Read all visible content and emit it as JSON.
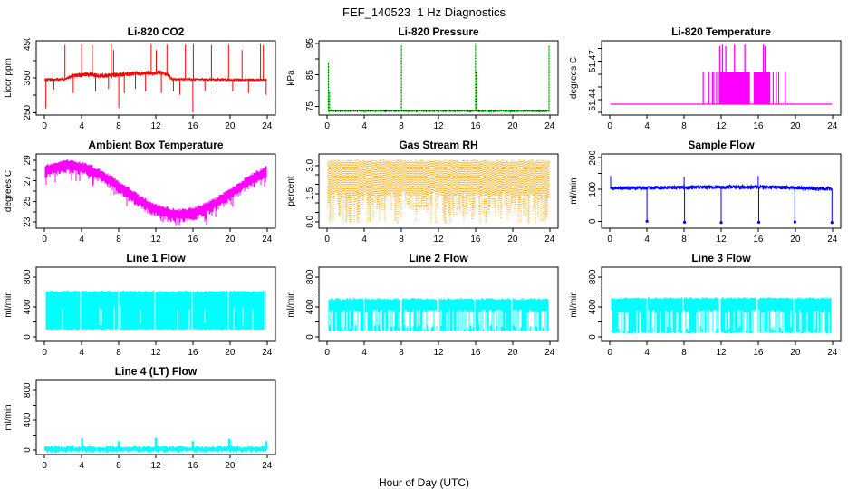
{
  "figure": {
    "title": "FEF_140523  1 Hz Diagnostics",
    "xlabel": "Hour of Day (UTC)",
    "background": "#FFFFFF",
    "axis_color": "#000000"
  },
  "chart_data": [
    {
      "type": "line",
      "title": "Li-820 CO2",
      "ylabel": "Licor ppm",
      "color": "#FF0000",
      "xlim": [
        -0.9,
        24.9
      ],
      "ylim": [
        243,
        457
      ],
      "xticks": [
        0,
        4,
        8,
        12,
        16,
        20,
        24
      ],
      "ytick_vals": [
        250,
        300,
        350,
        400,
        450
      ],
      "ytick_labels": [
        "250",
        "",
        "350",
        "",
        "450"
      ],
      "trace": {
        "kind": "noisy_line",
        "t0": 0.05,
        "t1": 23.95,
        "levels": [
          [
            0,
            345
          ],
          [
            2.2,
            346
          ],
          [
            3,
            357
          ],
          [
            5,
            360
          ],
          [
            6,
            356
          ],
          [
            8,
            359
          ],
          [
            10,
            364
          ],
          [
            12.5,
            365
          ],
          [
            13.2,
            362
          ],
          [
            13.6,
            350
          ],
          [
            14,
            346
          ],
          [
            24,
            344
          ]
        ],
        "noise": [
          [
            0,
            3
          ],
          [
            2.4,
            3
          ],
          [
            3,
            6
          ],
          [
            13,
            6
          ],
          [
            14,
            2.5
          ],
          [
            24,
            2.5
          ]
        ],
        "spikes": [
          [
            0.15,
            262
          ],
          [
            1.0,
            316
          ],
          [
            2.2,
            445
          ],
          [
            3.1,
            306
          ],
          [
            4.0,
            447
          ],
          [
            5.15,
            445
          ],
          [
            5.5,
            311
          ],
          [
            6.9,
            318
          ],
          [
            7.2,
            446
          ],
          [
            7.45,
            430
          ],
          [
            8.0,
            263
          ],
          [
            8.6,
            306
          ],
          [
            9.8,
            318
          ],
          [
            10.9,
            311
          ],
          [
            11.5,
            447
          ],
          [
            12.05,
            430
          ],
          [
            12.6,
            306
          ],
          [
            13.2,
            446
          ],
          [
            13.9,
            311
          ],
          [
            14.6,
            301
          ],
          [
            15.2,
            446
          ],
          [
            16.0,
            250
          ],
          [
            16.05,
            447
          ],
          [
            17.3,
            312
          ],
          [
            18.0,
            445
          ],
          [
            18.6,
            306
          ],
          [
            19.85,
            446
          ],
          [
            20.3,
            311
          ],
          [
            21.3,
            430
          ],
          [
            22.0,
            306
          ],
          [
            23.3,
            447
          ],
          [
            23.6,
            445
          ],
          [
            23.9,
            301
          ]
        ]
      }
    },
    {
      "type": "line",
      "title": "Li-820 Pressure",
      "ylabel": "kPa",
      "color": "#00FF00",
      "xlim": [
        -0.9,
        24.9
      ],
      "ylim": [
        72.3,
        95.8
      ],
      "xticks": [
        0,
        4,
        8,
        12,
        16,
        20,
        24
      ],
      "ytick_vals": [
        75,
        80,
        85,
        90,
        95
      ],
      "ytick_labels": [
        "75",
        "",
        "85",
        "",
        "95"
      ],
      "trace": {
        "kind": "noisy_line",
        "t0": 0.05,
        "t1": 23.95,
        "dotted_overlay": true,
        "levels": [
          [
            0,
            73.6
          ],
          [
            24,
            73.55
          ]
        ],
        "noise": [
          [
            0,
            0.12
          ],
          [
            24,
            0.12
          ]
        ],
        "spikes": [
          [
            0.12,
            88.6
          ],
          [
            0.25,
            79.5
          ],
          [
            4.0,
            72.9
          ],
          [
            8.0,
            94.4
          ],
          [
            12.0,
            73.0
          ],
          [
            16.0,
            94.7
          ],
          [
            16.1,
            86.0
          ],
          [
            17.5,
            73.0
          ],
          [
            19.8,
            72.8
          ],
          [
            23.92,
            94.2
          ]
        ]
      }
    },
    {
      "type": "line",
      "title": "Li-820 Temperature",
      "ylabel": "degrees C",
      "color": "#FF00FF",
      "xlim": [
        -0.9,
        24.9
      ],
      "ylim": [
        51.428,
        51.486
      ],
      "xticks": [
        0,
        4,
        8,
        12,
        16,
        20,
        24
      ],
      "ytick_vals": [
        51.43,
        51.44,
        51.45,
        51.46,
        51.47,
        51.48
      ],
      "ytick_labels": [
        "",
        "51.44",
        "",
        "",
        "51.47",
        ""
      ],
      "trace": {
        "kind": "step_blocks",
        "t0": 0.05,
        "t1": 23.95,
        "base": 51.4365,
        "block_top": 51.4615,
        "blocks": [
          [
            10.0,
            10.12
          ],
          [
            10.55,
            10.72
          ],
          [
            11.0,
            11.06
          ],
          [
            11.15,
            11.22
          ],
          [
            11.45,
            11.5
          ],
          [
            11.75,
            15.1
          ],
          [
            15.5,
            17.3
          ],
          [
            17.55,
            17.6
          ],
          [
            17.9,
            17.95
          ],
          [
            18.15,
            18.2
          ],
          [
            18.85,
            18.95
          ]
        ],
        "spikes": [
          [
            11.85,
            51.482
          ],
          [
            12.15,
            51.483
          ],
          [
            12.5,
            51.482
          ],
          [
            13.45,
            51.483
          ],
          [
            14.55,
            51.483
          ],
          [
            16.55,
            51.483
          ],
          [
            16.75,
            51.482
          ]
        ]
      }
    },
    {
      "type": "line",
      "title": "Ambient Box Temperature",
      "ylabel": "degrees C",
      "color": "#FF00FF",
      "xlim": [
        -0.9,
        24.9
      ],
      "ylim": [
        22.4,
        29.6
      ],
      "xticks": [
        0,
        4,
        8,
        12,
        16,
        20,
        24
      ],
      "ytick_vals": [
        23,
        24,
        25,
        26,
        27,
        28,
        29
      ],
      "ytick_labels": [
        "23",
        "",
        "25",
        "",
        "27",
        "",
        "29"
      ],
      "trace": {
        "kind": "sine_band",
        "t0": 0.05,
        "t1": 23.95,
        "mean": 26.1,
        "amp": 2.35,
        "phase": 2.6,
        "up": 0.6,
        "dn": 0.8,
        "spike_p": 0.12,
        "spike_amp": 0.9
      }
    },
    {
      "type": "scatter",
      "title": "Gas Stream RH",
      "ylabel": "percent",
      "color": "#FFA500",
      "xlim": [
        -0.9,
        24.9
      ],
      "ylim": [
        -0.35,
        3.62
      ],
      "xticks": [
        0,
        4,
        8,
        12,
        16,
        20,
        24
      ],
      "ytick_vals": [
        0,
        0.5,
        1,
        1.5,
        2,
        2.5,
        3
      ],
      "ytick_labels": [
        "0.0",
        "",
        "",
        "1.5",
        "",
        "",
        "3.0"
      ],
      "trace": {
        "kind": "dot_band",
        "t0": 0.05,
        "t1": 23.95,
        "top": 3.32,
        "mid": 1.45,
        "low_min": -0.08,
        "lower_p": 0.62
      }
    },
    {
      "type": "line",
      "title": "Sample Flow",
      "ylabel": "ml/min",
      "color": "#0000FF",
      "xlim": [
        -0.9,
        24.9
      ],
      "ylim": [
        -22,
        212
      ],
      "xticks": [
        0,
        4,
        8,
        12,
        16,
        20,
        24
      ],
      "ytick_vals": [
        0,
        50,
        100,
        150,
        200
      ],
      "ytick_labels": [
        "0",
        "",
        "100",
        "",
        "200"
      ],
      "trace": {
        "kind": "noisy_line",
        "t0": 0.05,
        "t1": 23.95,
        "dip_dots": true,
        "dot_below": 10,
        "levels": [
          [
            0,
            104
          ],
          [
            6,
            106
          ],
          [
            12,
            108
          ],
          [
            18,
            107
          ],
          [
            24,
            102
          ]
        ],
        "noise": [
          [
            0,
            6
          ],
          [
            24,
            6
          ]
        ],
        "spikes": [
          [
            0.08,
            143
          ],
          [
            4.0,
            0
          ],
          [
            8.0,
            140
          ],
          [
            8.05,
            -3
          ],
          [
            12.0,
            -4
          ],
          [
            16.0,
            143
          ],
          [
            16.06,
            -3
          ],
          [
            19.95,
            -2
          ],
          [
            23.95,
            -4
          ]
        ]
      }
    },
    {
      "type": "line",
      "title": "Line 1 Flow",
      "ylabel": "ml/min",
      "color": "#00FFFF",
      "xlim": [
        -0.9,
        24.9
      ],
      "ylim": [
        -60,
        930
      ],
      "xticks": [
        0,
        4,
        8,
        12,
        16,
        20,
        24
      ],
      "ytick_vals": [
        0,
        200,
        400,
        600,
        800
      ],
      "ytick_labels": [
        "0",
        "",
        "400",
        "",
        "800"
      ],
      "trace": {
        "kind": "band",
        "t0": 0.1,
        "t1": 23.9,
        "min": 100,
        "max": 618,
        "jmin": 14,
        "jmax": 24,
        "holeP": 0.05,
        "topFrac": 0.5,
        "gapw": 0.05,
        "gaps": [
          3.9,
          7.95,
          11.9,
          15.9,
          19.85,
          23.72
        ]
      }
    },
    {
      "type": "line",
      "title": "Line 2 Flow",
      "ylabel": "ml/min",
      "color": "#00FFFF",
      "xlim": [
        -0.9,
        24.9
      ],
      "ylim": [
        -60,
        930
      ],
      "xticks": [
        0,
        4,
        8,
        12,
        16,
        20,
        24
      ],
      "ytick_vals": [
        0,
        200,
        400,
        600,
        800
      ],
      "ytick_labels": [
        "0",
        "",
        "400",
        "",
        "800"
      ],
      "trace": {
        "kind": "band",
        "t0": 0.1,
        "t1": 23.85,
        "min": 85,
        "max": 520,
        "jmin": 20,
        "jmax": 28,
        "holeP": 0.45,
        "topFrac": 0.45,
        "gapw": 0.06,
        "gaps": [
          3.95,
          7.95,
          11.95,
          15.9,
          19.9
        ]
      }
    },
    {
      "type": "line",
      "title": "Line 3 Flow",
      "ylabel": "ml/min",
      "color": "#00FFFF",
      "xlim": [
        -0.9,
        24.9
      ],
      "ylim": [
        -60,
        930
      ],
      "xticks": [
        0,
        4,
        8,
        12,
        16,
        20,
        24
      ],
      "ytick_vals": [
        0,
        200,
        400,
        600,
        800
      ],
      "ytick_labels": [
        "0",
        "",
        "400",
        "",
        "800"
      ],
      "trace": {
        "kind": "band",
        "t0": 0.15,
        "t1": 23.9,
        "min": 58,
        "max": 530,
        "jmin": 26,
        "jmax": 26,
        "holeP": 0.4,
        "topFrac": 0.45,
        "gapw": 0.06,
        "gaps": [
          3.95,
          7.9,
          11.85,
          15.85,
          19.8
        ]
      }
    },
    {
      "type": "line",
      "title": "Line 4 (LT) Flow",
      "ylabel": "ml/min",
      "color": "#00FFFF",
      "xlim": [
        -0.9,
        24.9
      ],
      "ylim": [
        -60,
        930
      ],
      "xticks": [
        0,
        4,
        8,
        12,
        16,
        20,
        24
      ],
      "ytick_vals": [
        0,
        200,
        400,
        600,
        800
      ],
      "ytick_labels": [
        "0",
        "",
        "400",
        "",
        "800"
      ],
      "trace": {
        "kind": "noisy_line",
        "t0": 0.05,
        "t1": 23.95,
        "width": 2.5,
        "levels": [
          [
            0,
            12
          ],
          [
            24,
            12
          ]
        ],
        "noise": [
          [
            0,
            7
          ],
          [
            24,
            7
          ]
        ],
        "spikes": [
          [
            4.05,
            160
          ],
          [
            4.18,
            62
          ],
          [
            8.0,
            118
          ],
          [
            12.0,
            165
          ],
          [
            12.12,
            55
          ],
          [
            16.0,
            118
          ],
          [
            19.95,
            150
          ],
          [
            20.08,
            72
          ],
          [
            23.9,
            118
          ]
        ]
      }
    }
  ]
}
